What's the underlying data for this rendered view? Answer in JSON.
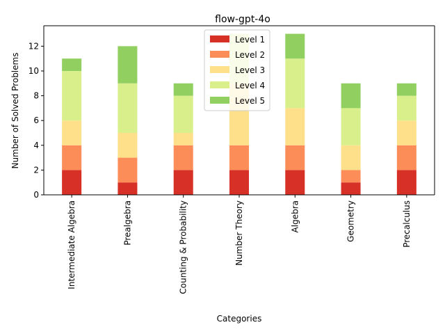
{
  "chart_data": {
    "type": "bar",
    "stacked": true,
    "title": "flow-gpt-4o",
    "xlabel": "Categories",
    "ylabel": "Number of Solved Problems",
    "categories": [
      "Intermediate Algebra",
      "Prealgebra",
      "Counting & Probability",
      "Number Theory",
      "Algebra",
      "Geometry",
      "Precalculus"
    ],
    "series": [
      {
        "name": "Level 1",
        "color": "#d73027",
        "values": [
          2,
          1,
          2,
          2,
          2,
          1,
          2
        ]
      },
      {
        "name": "Level 2",
        "color": "#fc8d59",
        "values": [
          2,
          2,
          2,
          2,
          2,
          1,
          2
        ]
      },
      {
        "name": "Level 3",
        "color": "#fee08b",
        "values": [
          2,
          2,
          1,
          5,
          3,
          2,
          2
        ]
      },
      {
        "name": "Level 4",
        "color": "#d9ef8b",
        "values": [
          4,
          4,
          3,
          4,
          4,
          3,
          2
        ]
      },
      {
        "name": "Level 5",
        "color": "#91cf60",
        "values": [
          1,
          3,
          1,
          0,
          2,
          2,
          1
        ]
      }
    ],
    "ylim": [
      0,
      13.65
    ],
    "yticks": [
      0,
      2,
      4,
      6,
      8,
      10,
      12
    ],
    "grid": false,
    "legend_position": "top-center"
  }
}
